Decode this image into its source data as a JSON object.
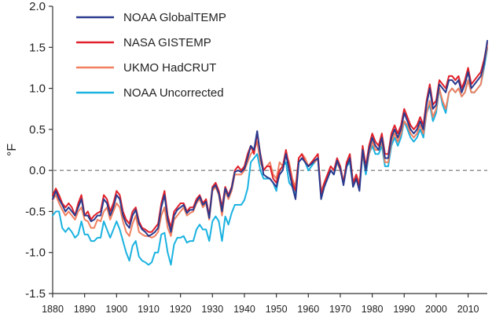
{
  "chart_data": {
    "type": "line",
    "title": "",
    "xlabel": "",
    "ylabel": "°F",
    "xlim": [
      1880,
      2016
    ],
    "ylim": [
      -1.5,
      2.0
    ],
    "x_ticks": [
      "1880",
      "1890",
      "1900",
      "1910",
      "1920",
      "1930",
      "1940",
      "1950",
      "1960",
      "1970",
      "1980",
      "1990",
      "2000",
      "2010"
    ],
    "y_ticks": [
      "2.0",
      "1.5",
      "1.0",
      "0.5",
      "0.0",
      "-0.5",
      "-1.0",
      "-1.5"
    ],
    "reference_line": {
      "y": 0.0,
      "style": "dashed",
      "color": "#9a9a9a"
    },
    "legend_position": "top-left",
    "start_year": 1880,
    "series": [
      {
        "name": "NOAA Uncorrected",
        "color": "#1ab2e0",
        "values": [
          -0.55,
          -0.5,
          -0.5,
          -0.7,
          -0.75,
          -0.7,
          -0.75,
          -0.82,
          -0.78,
          -0.62,
          -0.78,
          -0.78,
          -0.86,
          -0.86,
          -0.82,
          -0.82,
          -0.62,
          -0.72,
          -0.82,
          -0.72,
          -0.62,
          -0.72,
          -0.86,
          -1.0,
          -1.1,
          -0.92,
          -0.86,
          -1.05,
          -1.1,
          -1.12,
          -1.15,
          -1.12,
          -1.0,
          -1.0,
          -0.78,
          -0.76,
          -1.0,
          -1.15,
          -0.9,
          -0.82,
          -0.82,
          -0.8,
          -0.88,
          -0.86,
          -0.86,
          -0.72,
          -0.66,
          -0.72,
          -0.72,
          -0.86,
          -0.62,
          -0.56,
          -0.62,
          -0.86,
          -0.56,
          -0.66,
          -0.52,
          -0.42,
          -0.42,
          -0.42,
          -0.36,
          -0.22,
          0.1,
          0.15,
          0.2,
          0.0,
          -0.1,
          -0.1,
          -0.1,
          -0.15,
          -0.25,
          0.0,
          0.05,
          0.1,
          -0.15,
          -0.2,
          -0.3,
          0.1,
          0.15,
          0.1,
          0.0,
          0.05,
          0.1,
          0.15,
          -0.3,
          -0.2,
          -0.1,
          0.0,
          -0.05,
          0.1,
          0.05,
          -0.15,
          0.05,
          0.1,
          -0.2,
          -0.1,
          -0.2,
          0.2,
          -0.05,
          0.2,
          0.3,
          0.2,
          0.2,
          0.3,
          0.05,
          0.05,
          0.3,
          0.4,
          0.3,
          0.4,
          0.6,
          0.5,
          0.4,
          0.35,
          0.4,
          0.5,
          0.4,
          0.7,
          0.8,
          0.6,
          0.7,
          1.0,
          0.8,
          0.7,
          0.95,
          1.0,
          0.95,
          1.0,
          0.9,
          0.95,
          1.1,
          0.95,
          0.95,
          1.0,
          1.05,
          1.25,
          1.48
        ]
      },
      {
        "name": "UKMO HadCRUT",
        "color": "#f08060",
        "values": [
          -0.36,
          -0.3,
          -0.4,
          -0.48,
          -0.55,
          -0.5,
          -0.55,
          -0.6,
          -0.5,
          -0.45,
          -0.6,
          -0.62,
          -0.7,
          -0.7,
          -0.6,
          -0.62,
          -0.5,
          -0.45,
          -0.6,
          -0.5,
          -0.4,
          -0.45,
          -0.62,
          -0.75,
          -0.8,
          -0.65,
          -0.55,
          -0.75,
          -0.78,
          -0.8,
          -0.8,
          -0.82,
          -0.8,
          -0.75,
          -0.55,
          -0.45,
          -0.7,
          -0.8,
          -0.6,
          -0.55,
          -0.5,
          -0.45,
          -0.55,
          -0.52,
          -0.5,
          -0.4,
          -0.35,
          -0.45,
          -0.4,
          -0.6,
          -0.25,
          -0.2,
          -0.3,
          -0.55,
          -0.25,
          -0.35,
          -0.25,
          -0.05,
          -0.05,
          -0.05,
          0.0,
          0.1,
          0.2,
          0.25,
          0.35,
          0.1,
          0.0,
          0.05,
          0.1,
          -0.05,
          -0.1,
          0.1,
          0.05,
          0.2,
          0.1,
          -0.1,
          -0.2,
          0.15,
          0.2,
          0.15,
          0.05,
          0.1,
          0.1,
          0.15,
          -0.25,
          -0.15,
          -0.05,
          0.05,
          0.0,
          0.1,
          0.0,
          -0.15,
          0.1,
          0.15,
          -0.2,
          -0.05,
          -0.15,
          0.2,
          0.0,
          0.2,
          0.35,
          0.25,
          0.25,
          0.35,
          0.1,
          0.1,
          0.35,
          0.45,
          0.35,
          0.45,
          0.6,
          0.55,
          0.45,
          0.4,
          0.45,
          0.55,
          0.45,
          0.7,
          0.85,
          0.65,
          0.75,
          1.0,
          0.85,
          0.75,
          0.95,
          1.0,
          0.95,
          1.0,
          0.9,
          0.95,
          1.1,
          0.95,
          0.95,
          1.0,
          1.05,
          1.3,
          1.5
        ]
      },
      {
        "name": "NASA GISTEMP",
        "color": "#e0202a",
        "values": [
          -0.3,
          -0.22,
          -0.3,
          -0.4,
          -0.45,
          -0.4,
          -0.45,
          -0.55,
          -0.4,
          -0.3,
          -0.55,
          -0.5,
          -0.6,
          -0.55,
          -0.52,
          -0.5,
          -0.3,
          -0.35,
          -0.5,
          -0.4,
          -0.25,
          -0.3,
          -0.5,
          -0.6,
          -0.65,
          -0.5,
          -0.45,
          -0.62,
          -0.7,
          -0.72,
          -0.75,
          -0.75,
          -0.7,
          -0.65,
          -0.4,
          -0.25,
          -0.55,
          -0.7,
          -0.5,
          -0.45,
          -0.4,
          -0.4,
          -0.5,
          -0.45,
          -0.45,
          -0.35,
          -0.3,
          -0.4,
          -0.35,
          -0.55,
          -0.2,
          -0.15,
          -0.25,
          -0.45,
          -0.2,
          -0.3,
          -0.2,
          0.0,
          0.05,
          0.0,
          0.05,
          0.2,
          0.3,
          0.2,
          0.45,
          0.2,
          0.0,
          0.05,
          0.05,
          -0.1,
          -0.15,
          0.0,
          0.05,
          0.25,
          0.05,
          -0.15,
          -0.25,
          0.15,
          0.2,
          0.1,
          0.05,
          0.1,
          0.15,
          0.2,
          -0.3,
          -0.15,
          -0.05,
          0.05,
          0.0,
          0.15,
          0.05,
          -0.15,
          0.1,
          0.2,
          -0.15,
          -0.05,
          -0.2,
          0.3,
          0.05,
          0.3,
          0.45,
          0.35,
          0.3,
          0.45,
          0.2,
          0.2,
          0.45,
          0.55,
          0.45,
          0.55,
          0.75,
          0.65,
          0.55,
          0.5,
          0.55,
          0.65,
          0.55,
          0.85,
          1.05,
          0.8,
          0.85,
          1.1,
          1.05,
          1.0,
          1.15,
          1.15,
          1.1,
          1.15,
          1.0,
          1.1,
          1.25,
          1.05,
          1.1,
          1.15,
          1.2,
          1.35,
          1.55
        ]
      },
      {
        "name": "NOAA GlobalTEMP",
        "color": "#2a3a8e",
        "values": [
          -0.35,
          -0.25,
          -0.35,
          -0.42,
          -0.5,
          -0.45,
          -0.5,
          -0.55,
          -0.45,
          -0.35,
          -0.55,
          -0.55,
          -0.62,
          -0.6,
          -0.55,
          -0.55,
          -0.35,
          -0.4,
          -0.55,
          -0.45,
          -0.3,
          -0.35,
          -0.55,
          -0.65,
          -0.7,
          -0.55,
          -0.48,
          -0.65,
          -0.72,
          -0.75,
          -0.8,
          -0.78,
          -0.75,
          -0.7,
          -0.45,
          -0.3,
          -0.6,
          -0.75,
          -0.55,
          -0.48,
          -0.45,
          -0.42,
          -0.52,
          -0.48,
          -0.48,
          -0.38,
          -0.32,
          -0.42,
          -0.38,
          -0.58,
          -0.22,
          -0.18,
          -0.28,
          -0.5,
          -0.22,
          -0.32,
          -0.22,
          -0.02,
          0.0,
          -0.02,
          0.02,
          0.15,
          0.3,
          0.25,
          0.48,
          0.18,
          -0.05,
          -0.08,
          -0.1,
          -0.15,
          -0.2,
          -0.05,
          0.0,
          0.2,
          0.0,
          -0.2,
          -0.35,
          0.1,
          0.15,
          0.1,
          0.05,
          0.08,
          0.12,
          0.15,
          -0.35,
          -0.2,
          -0.1,
          0.0,
          -0.05,
          0.12,
          0.02,
          -0.18,
          0.05,
          0.15,
          -0.2,
          -0.1,
          -0.25,
          0.25,
          0.0,
          0.25,
          0.4,
          0.3,
          0.25,
          0.4,
          0.15,
          0.15,
          0.4,
          0.5,
          0.4,
          0.5,
          0.7,
          0.6,
          0.5,
          0.45,
          0.5,
          0.6,
          0.5,
          0.8,
          1.0,
          0.75,
          0.8,
          1.05,
          1.0,
          0.95,
          1.1,
          1.1,
          1.05,
          1.1,
          0.95,
          1.05,
          1.2,
          1.0,
          1.05,
          1.1,
          1.15,
          1.3,
          1.58
        ]
      }
    ],
    "legend_order": [
      "NOAA GlobalTEMP",
      "NASA GISTEMP",
      "UKMO HadCRUT",
      "NOAA Uncorrected"
    ]
  }
}
